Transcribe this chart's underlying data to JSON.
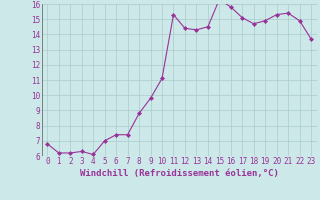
{
  "x": [
    0,
    1,
    2,
    3,
    4,
    5,
    6,
    7,
    8,
    9,
    10,
    11,
    12,
    13,
    14,
    15,
    16,
    17,
    18,
    19,
    20,
    21,
    22,
    23
  ],
  "y": [
    6.8,
    6.2,
    6.2,
    6.3,
    6.1,
    7.0,
    7.4,
    7.4,
    8.8,
    9.8,
    11.1,
    15.3,
    14.4,
    14.3,
    14.5,
    16.3,
    15.8,
    15.1,
    14.7,
    14.9,
    15.3,
    15.4,
    14.9,
    13.7
  ],
  "line_color": "#993399",
  "marker": "D",
  "marker_size": 2.0,
  "background_color": "#cce8e8",
  "grid_color": "#aacccc",
  "xlabel": "Windchill (Refroidissement éolien,°C)",
  "xlabel_color": "#993399",
  "tick_color": "#993399",
  "ylim": [
    6,
    16
  ],
  "yticks": [
    6,
    7,
    8,
    9,
    10,
    11,
    12,
    13,
    14,
    15,
    16
  ],
  "xticks": [
    0,
    1,
    2,
    3,
    4,
    5,
    6,
    7,
    8,
    9,
    10,
    11,
    12,
    13,
    14,
    15,
    16,
    17,
    18,
    19,
    20,
    21,
    22,
    23
  ],
  "tick_fontsize": 5.5,
  "label_fontsize": 6.5
}
